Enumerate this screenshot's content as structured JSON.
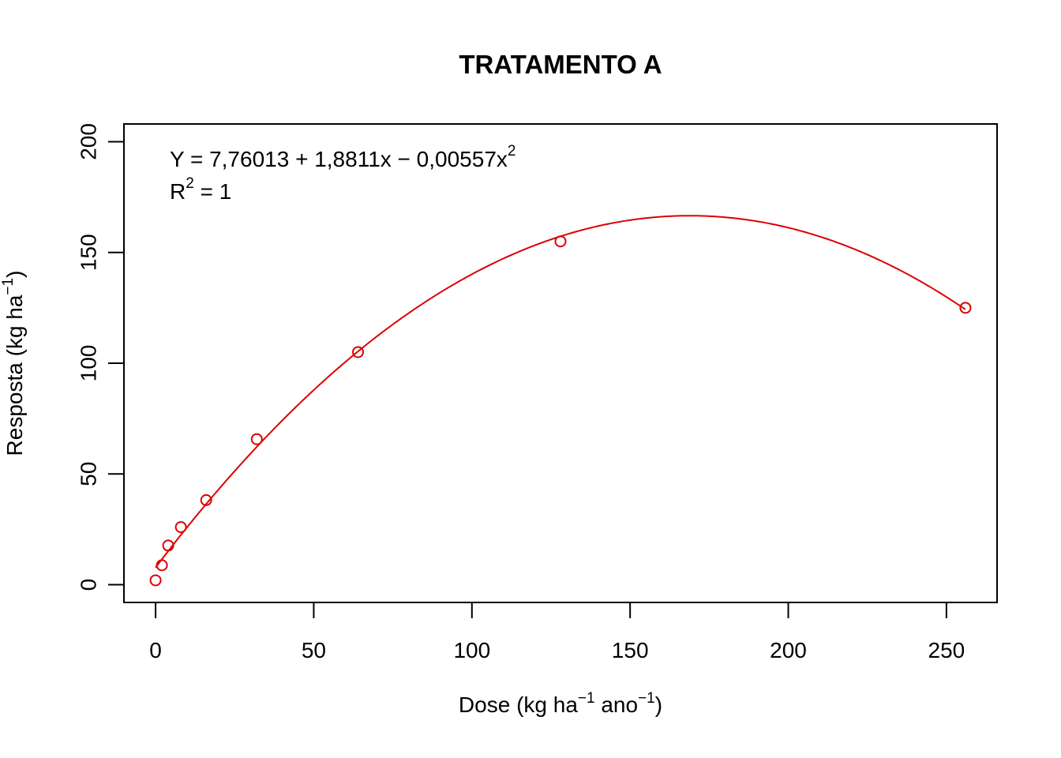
{
  "chart_data": {
    "type": "scatter",
    "title": "TRATAMENTO A",
    "xlabel": {
      "base": "Dose (kg ha",
      "exp1": "−1",
      "mid": " ano",
      "exp2": "−1",
      "end": ")"
    },
    "ylabel": {
      "base": "Resposta (kg ha",
      "exp": "−1",
      "end": ")"
    },
    "xlim": [
      -10,
      266
    ],
    "ylim": [
      -8,
      208
    ],
    "x_ticks": [
      0,
      50,
      100,
      150,
      200,
      250
    ],
    "y_ticks": [
      0,
      50,
      100,
      150,
      200
    ],
    "grid": false,
    "points_color": "#DD0000",
    "curve_color": "#DD0000",
    "series": [
      {
        "x": [
          0,
          2,
          4,
          8,
          16,
          32,
          64,
          128,
          256
        ],
        "y": [
          2,
          8.8,
          17.7,
          26,
          38.2,
          65.7,
          105,
          155,
          125
        ]
      }
    ],
    "fit": {
      "coefficients": [
        7.76013,
        1.8811,
        -0.00557
      ],
      "x_range": [
        0,
        256
      ],
      "equation": {
        "lhs": "Y = 7,76013 + 1,8811x − 0,00557x",
        "lhs_exp": "2",
        "r2_base": "R",
        "r2_exp": "2",
        "r2_rhs": " = 1"
      }
    }
  }
}
